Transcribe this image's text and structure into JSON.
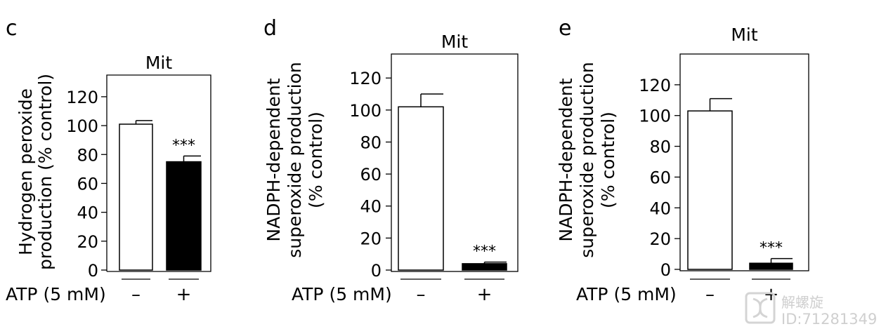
{
  "chart_data": [
    {
      "type": "bar",
      "panel": "c",
      "title": "Mit",
      "ylabel": [
        "Hydrogen peroxide",
        "production (% control)"
      ],
      "ylim": [
        0,
        135
      ],
      "yticks": [
        0,
        20,
        40,
        60,
        80,
        100,
        120
      ],
      "categories": [
        "–",
        "+"
      ],
      "values": [
        101,
        75
      ],
      "errors": [
        2.5,
        4
      ],
      "bar_colors": [
        "#ffffff",
        "#000000"
      ],
      "significance": [
        "",
        "***"
      ],
      "xlabel": "ATP (5 mM)",
      "frame": "partial"
    },
    {
      "type": "bar",
      "panel": "d",
      "title": "Mit",
      "ylabel": [
        "NADPH-dependent",
        "superoxide production",
        "(% control)"
      ],
      "ylim": [
        0,
        135
      ],
      "yticks": [
        0,
        20,
        40,
        60,
        80,
        100,
        120
      ],
      "categories": [
        "–",
        "+"
      ],
      "values": [
        102,
        4
      ],
      "errors": [
        8,
        1
      ],
      "bar_colors": [
        "#ffffff",
        "#000000"
      ],
      "significance": [
        "",
        "***"
      ],
      "xlabel": "ATP (5 mM)",
      "frame": "box"
    },
    {
      "type": "bar",
      "panel": "e",
      "title": "Mit",
      "ylabel": [
        "NADPH-dependent",
        "superoxide production",
        "(% control)"
      ],
      "ylim": [
        0,
        140
      ],
      "yticks": [
        0,
        20,
        40,
        60,
        80,
        100,
        120
      ],
      "categories": [
        "–",
        "+"
      ],
      "values": [
        103,
        4
      ],
      "errors": [
        8,
        3
      ],
      "bar_colors": [
        "#ffffff",
        "#000000"
      ],
      "significance": [
        "",
        "***"
      ],
      "xlabel": "ATP (5 mM)",
      "frame": "box"
    }
  ],
  "watermark": {
    "name": "解螺旋",
    "id": "ID:71281349",
    "icon": "helix-logo-icon"
  }
}
